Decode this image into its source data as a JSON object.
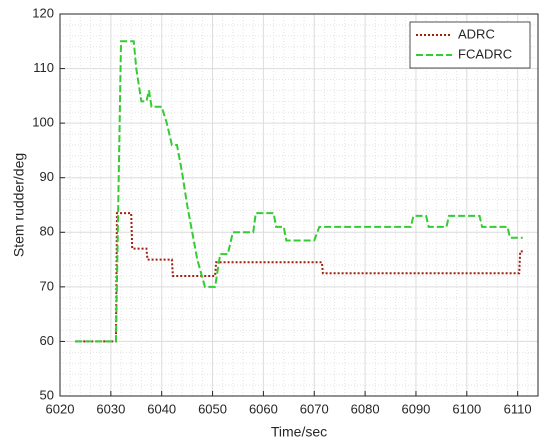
{
  "chart_data": {
    "type": "line",
    "xlabel": "Time/sec",
    "ylabel": "Stem rudder/deg",
    "xlim": [
      6020,
      6114
    ],
    "ylim": [
      50,
      120
    ],
    "xticks": [
      6020,
      6030,
      6040,
      6050,
      6060,
      6070,
      6080,
      6090,
      6100,
      6110
    ],
    "yticks": [
      50,
      60,
      70,
      80,
      90,
      100,
      110,
      120
    ],
    "grid": true,
    "minor_grid": true,
    "legend": "upper right",
    "series": [
      {
        "name": "ADRC",
        "color": "#a0200e",
        "dash": "2,2",
        "x": [
          6023,
          6031,
          6031.2,
          6034,
          6034.2,
          6037,
          6037.2,
          6042,
          6042.2,
          6050.5,
          6050.7,
          6071.5,
          6071.7,
          6110.3,
          6110.5,
          6111
        ],
        "values": [
          60,
          60,
          83.5,
          83.5,
          77,
          77,
          75,
          75,
          72,
          72,
          74.5,
          74.5,
          72.5,
          72.5,
          76.5,
          76.5
        ]
      },
      {
        "name": "FCADRC",
        "color": "#33cc33",
        "dash": "7,3",
        "x": [
          6023,
          6031,
          6032,
          6034.5,
          6035,
          6036,
          6037,
          6037.5,
          6038,
          6040,
          6041,
          6042,
          6043,
          6044,
          6045,
          6046,
          6047,
          6048.5,
          6050.5,
          6051.5,
          6053,
          6054,
          6058,
          6058.5,
          6062,
          6062.5,
          6064,
          6064.5,
          6070,
          6071,
          6089,
          6089.5,
          6092,
          6092.5,
          6096,
          6096.5,
          6102.5,
          6103,
          6108,
          6108.5,
          6111
        ],
        "values": [
          60,
          60,
          115,
          115,
          110,
          104,
          104,
          106,
          103,
          103,
          100,
          96,
          96,
          91,
          85,
          80,
          75,
          70,
          70,
          76,
          76,
          80,
          80,
          83.5,
          83.5,
          81,
          81,
          78.5,
          78.5,
          81,
          81,
          83,
          83,
          81,
          81,
          83,
          83,
          81,
          81,
          79,
          79
        ]
      }
    ]
  }
}
